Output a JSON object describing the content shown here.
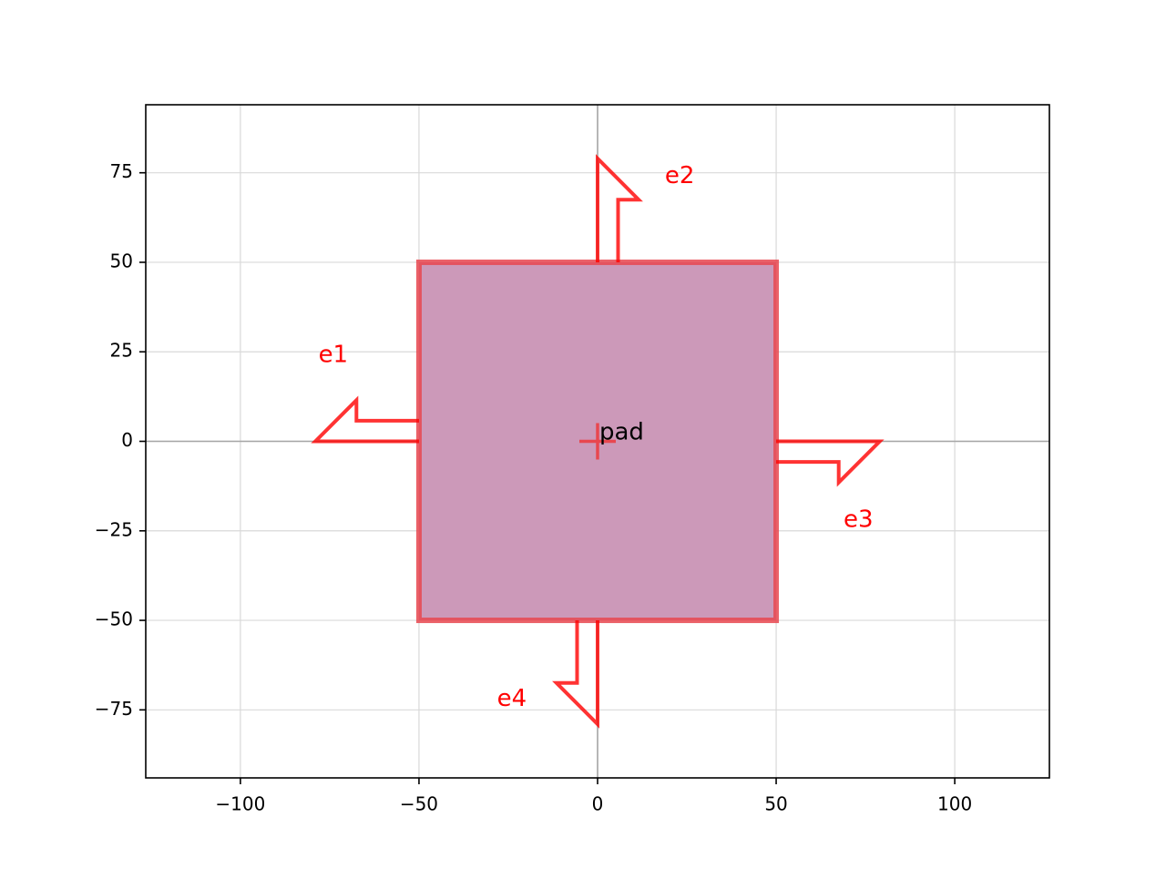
{
  "chart_data": {
    "type": "scatter",
    "title": "",
    "xlabel": "",
    "ylabel": "",
    "xlim": [
      -126.5,
      126.5
    ],
    "ylim": [
      -94,
      94
    ],
    "grid": true,
    "x_ticks": [
      -100,
      -50,
      0,
      50,
      100
    ],
    "y_ticks": [
      -75,
      -50,
      -25,
      0,
      25,
      50,
      75
    ],
    "x_tick_labels": [
      "−100",
      "−50",
      "0",
      "50",
      "100"
    ],
    "y_tick_labels": [
      "−75",
      "−50",
      "−25",
      "0",
      "25",
      "50",
      "75"
    ],
    "shapes": [
      {
        "name": "pad",
        "kind": "rectangle",
        "x_range": [
          -50,
          50
        ],
        "y_range": [
          -50,
          50
        ],
        "fill_color": "#cc99b9",
        "edge_color": "#e8474f",
        "center": [
          0,
          0
        ]
      }
    ],
    "ports": [
      {
        "name": "e1",
        "color": "#ff0000",
        "outline": [
          [
            -50,
            0
          ],
          [
            -79,
            0
          ],
          [
            -67.5,
            11.5
          ],
          [
            -67.5,
            5.75
          ],
          [
            -50,
            5.75
          ]
        ],
        "label_pos": [
          -74,
          24
        ]
      },
      {
        "name": "e2",
        "color": "#ff0000",
        "outline": [
          [
            0,
            50
          ],
          [
            0,
            79
          ],
          [
            11.5,
            67.5
          ],
          [
            5.75,
            67.5
          ],
          [
            5.75,
            50
          ]
        ],
        "label_pos": [
          23,
          74
        ]
      },
      {
        "name": "e3",
        "color": "#ff0000",
        "outline": [
          [
            50,
            0
          ],
          [
            79,
            0
          ],
          [
            67.5,
            -11.5
          ],
          [
            67.5,
            -5.75
          ],
          [
            50,
            -5.75
          ]
        ],
        "label_pos": [
          73,
          -22
        ]
      },
      {
        "name": "e4",
        "color": "#ff0000",
        "outline": [
          [
            0,
            -50
          ],
          [
            0,
            -79
          ],
          [
            -11.5,
            -67.5
          ],
          [
            -5.75,
            -67.5
          ],
          [
            -5.75,
            -50
          ]
        ],
        "label_pos": [
          -24,
          -72
        ]
      }
    ],
    "colors": {
      "axes": "#000000",
      "grid": "#d9d9d9",
      "zero_line": "#a6a6a6"
    }
  }
}
